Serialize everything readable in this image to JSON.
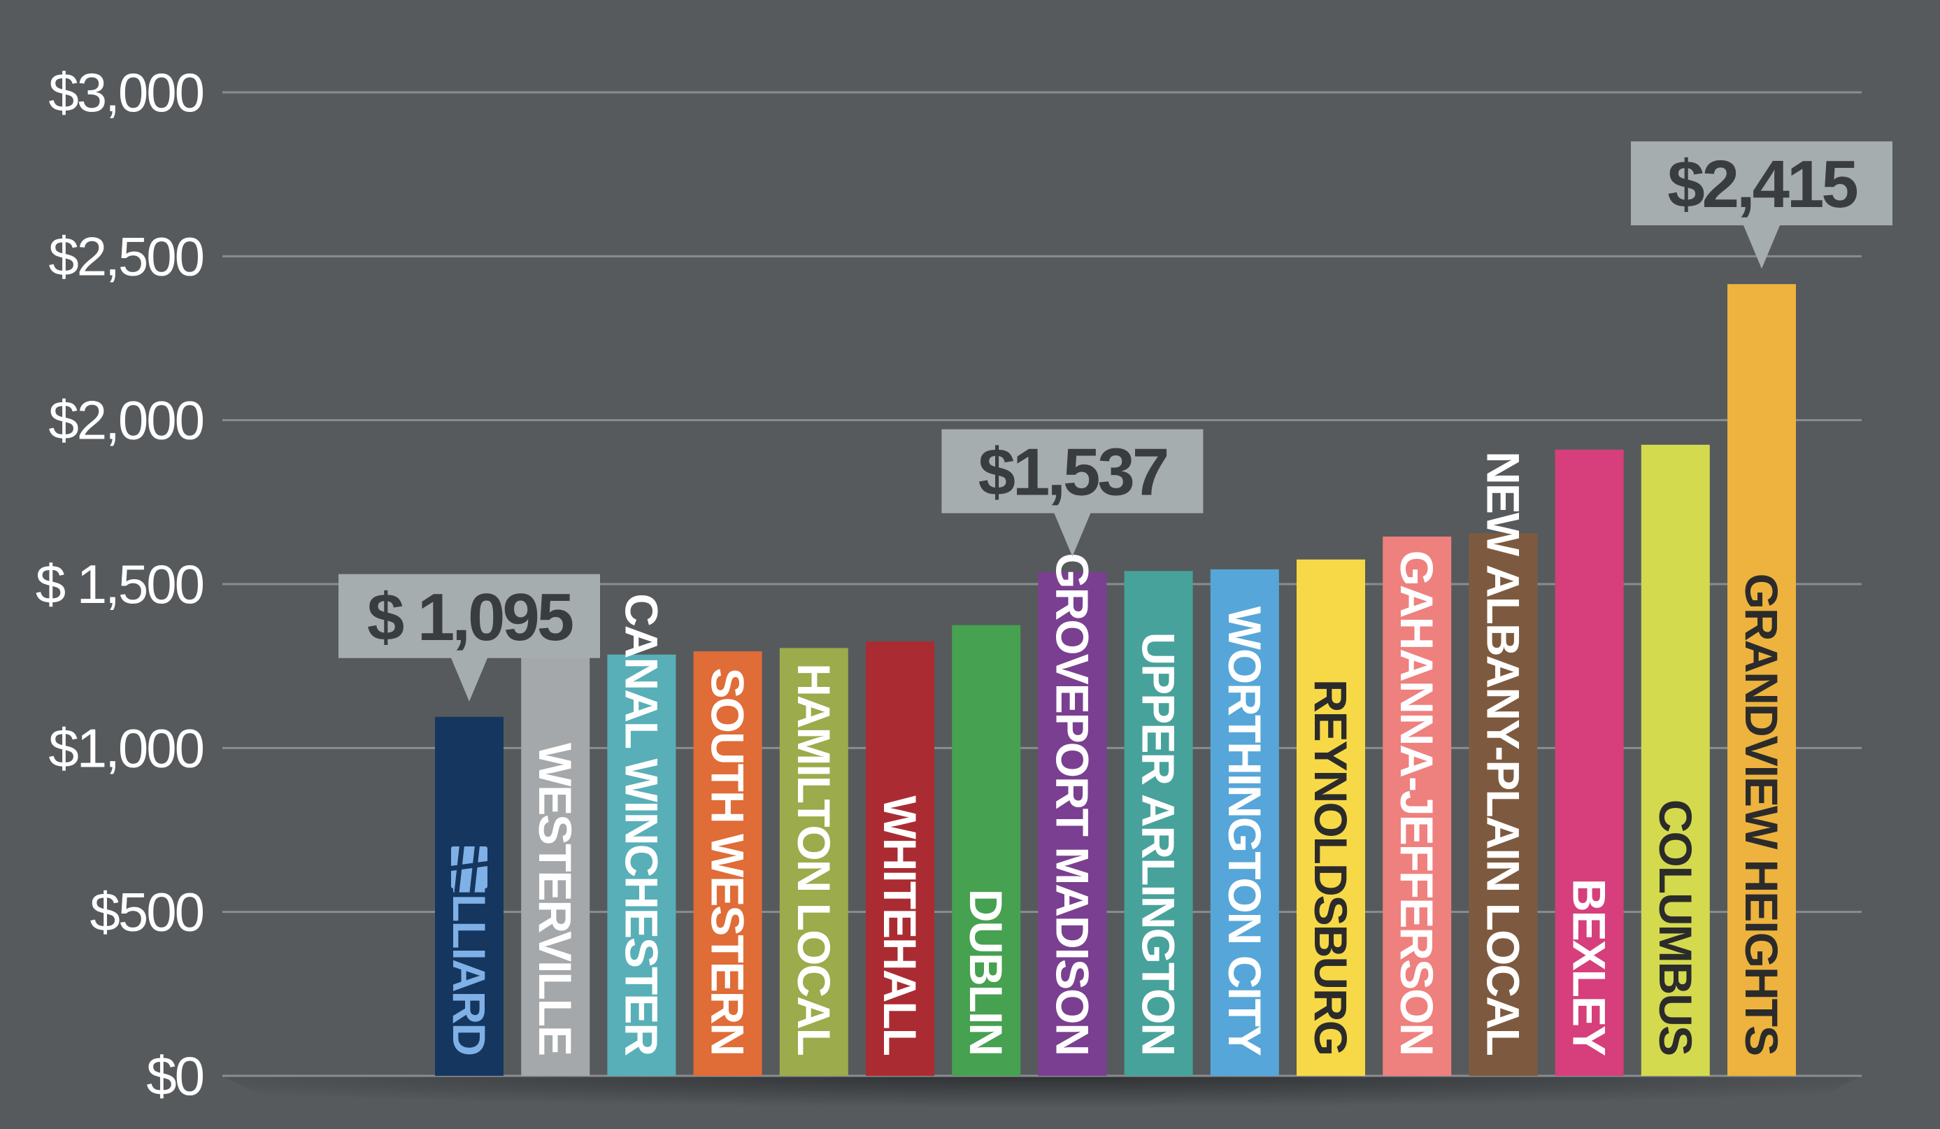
{
  "chart_data": {
    "type": "bar",
    "categories": [
      "HILLIARD",
      "WESTERVILLE",
      "CANAL WINCHESTER",
      "SOUTH WESTERN",
      "HAMILTON LOCAL",
      "WHITEHALL",
      "DUBLIN",
      "GROVEPORT MADISON",
      "UPPER ARLINGTON",
      "WORTHINGTON CITY",
      "REYNOLDSBURG",
      "GAHANNA-JEFFERSON",
      "NEW ALBANY-PLAIN LOCAL",
      "BEXLEY",
      "COLUMBUS",
      "GRANDVIEW HEIGHTS"
    ],
    "values": [
      1095,
      1275,
      1285,
      1295,
      1305,
      1325,
      1375,
      1537,
      1540,
      1545,
      1575,
      1645,
      1655,
      1910,
      1925,
      2415
    ],
    "colors": [
      "#15365e",
      "#a5a8aa",
      "#58afb8",
      "#e06c37",
      "#9cab4b",
      "#aa2c32",
      "#46a151",
      "#7a3f91",
      "#47a29b",
      "#56a6d9",
      "#f7d948",
      "#ee807e",
      "#7d5a3f",
      "#d63f7b",
      "#d4da4d",
      "#eeb33e"
    ],
    "label_colors": [
      "#7fb0e6",
      "#ffffff",
      "#ffffff",
      "#ffffff",
      "#ffffff",
      "#ffffff",
      "#ffffff",
      "#ffffff",
      "#ffffff",
      "#ffffff",
      "#2b2b2b",
      "#ffffff",
      "#ffffff",
      "#ffffff",
      "#2b2b2b",
      "#2b2b2b"
    ],
    "y_ticks": [
      0,
      500,
      1000,
      1500,
      2000,
      2500,
      3000
    ],
    "y_tick_labels": [
      "$0",
      "$500",
      "$1,000",
      "$ 1,500",
      "$2,000",
      "$2,500",
      "$3,000"
    ],
    "ylim": [
      0,
      3000
    ],
    "grid": true,
    "callouts": [
      {
        "category": "HILLIARD",
        "text": "$ 1,095"
      },
      {
        "category": "GROVEPORT MADISON",
        "text": "$1,537"
      },
      {
        "category": "GRANDVIEW HEIGHTS",
        "text": "$2,415"
      }
    ],
    "logo_icon": "hilliard-logo-icon"
  }
}
